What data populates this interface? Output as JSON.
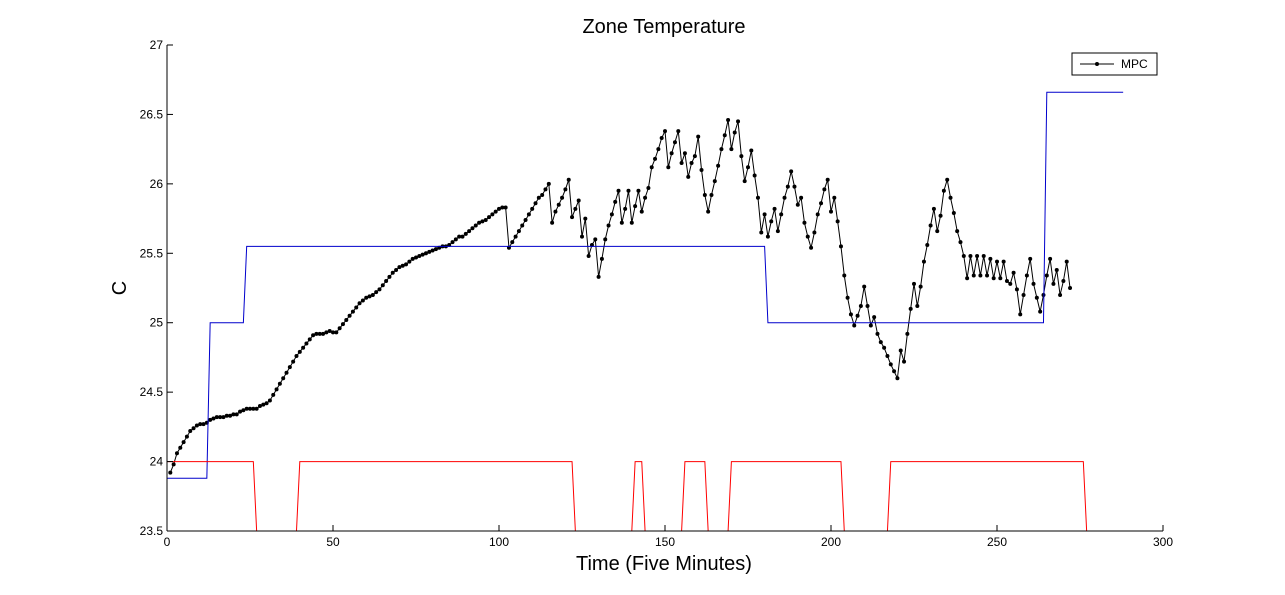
{
  "chart_data": {
    "type": "line",
    "title": "Zone Temperature",
    "xlabel": "Time (Five Minutes)",
    "ylabel": "C",
    "xlim": [
      0,
      300
    ],
    "ylim": [
      23.5,
      27
    ],
    "xticks": [
      0,
      50,
      100,
      150,
      200,
      250,
      300
    ],
    "yticks": [
      23.5,
      24,
      24.5,
      25,
      25.5,
      26,
      26.5,
      27
    ],
    "xtick_labels": [
      "0",
      "50",
      "100",
      "150",
      "200",
      "250",
      "300"
    ],
    "ytick_labels": [
      "23.5",
      "24",
      "24.5",
      "25",
      "25.5",
      "26",
      "26.5",
      "27"
    ],
    "grid": false,
    "legend_position": "top-right",
    "legend": [
      "MPC"
    ],
    "series": [
      {
        "name": "MPC",
        "color": "#000000",
        "marker": "dot",
        "x_start": 1,
        "x_step": 1,
        "y": [
          23.92,
          23.98,
          24.06,
          24.1,
          24.14,
          24.18,
          24.22,
          24.24,
          24.26,
          24.27,
          24.27,
          24.28,
          24.3,
          24.31,
          24.32,
          24.32,
          24.32,
          24.33,
          24.33,
          24.34,
          24.34,
          24.36,
          24.37,
          24.38,
          24.38,
          24.38,
          24.38,
          24.4,
          24.41,
          24.42,
          24.44,
          24.48,
          24.52,
          24.56,
          24.6,
          24.64,
          24.68,
          24.72,
          24.76,
          24.79,
          24.82,
          24.85,
          24.88,
          24.91,
          24.92,
          24.92,
          24.92,
          24.93,
          24.94,
          24.93,
          24.93,
          24.96,
          24.99,
          25.02,
          25.05,
          25.08,
          25.11,
          25.14,
          25.16,
          25.18,
          25.19,
          25.2,
          25.22,
          25.24,
          25.27,
          25.3,
          25.33,
          25.36,
          25.38,
          25.4,
          25.41,
          25.42,
          25.44,
          25.46,
          25.47,
          25.48,
          25.49,
          25.5,
          25.51,
          25.52,
          25.53,
          25.54,
          25.55,
          25.55,
          25.56,
          25.58,
          25.6,
          25.62,
          25.62,
          25.64,
          25.66,
          25.68,
          25.7,
          25.72,
          25.73,
          25.74,
          25.76,
          25.78,
          25.8,
          25.82,
          25.83,
          25.83,
          25.54,
          25.58,
          25.62,
          25.66,
          25.7,
          25.74,
          25.78,
          25.82,
          25.86,
          25.9,
          25.92,
          25.96,
          26.0,
          25.72,
          25.8,
          25.85,
          25.9,
          25.96,
          26.03,
          25.76,
          25.82,
          25.88,
          25.62,
          25.75,
          25.48,
          25.56,
          25.6,
          25.33,
          25.46,
          25.6,
          25.7,
          25.78,
          25.87,
          25.95,
          25.72,
          25.82,
          25.95,
          25.72,
          25.84,
          25.95,
          25.8,
          25.9,
          25.97,
          26.12,
          26.18,
          26.25,
          26.33,
          26.38,
          26.12,
          26.22,
          26.3,
          26.38,
          26.15,
          26.22,
          26.05,
          26.15,
          26.2,
          26.34,
          26.1,
          25.92,
          25.8,
          25.92,
          26.02,
          26.13,
          26.25,
          26.35,
          26.46,
          26.25,
          26.37,
          26.45,
          26.2,
          26.02,
          26.12,
          26.24,
          26.06,
          25.9,
          25.65,
          25.78,
          25.62,
          25.73,
          25.82,
          25.66,
          25.78,
          25.9,
          25.98,
          26.09,
          25.98,
          25.85,
          25.9,
          25.72,
          25.62,
          25.54,
          25.65,
          25.78,
          25.86,
          25.96,
          26.03,
          25.8,
          25.9,
          25.73,
          25.55,
          25.34,
          25.18,
          25.06,
          24.98,
          25.05,
          25.12,
          25.26,
          25.12,
          24.98,
          25.04,
          24.92,
          24.86,
          24.82,
          24.76,
          24.7,
          24.65,
          24.6,
          24.8,
          24.72,
          24.92,
          25.1,
          25.28,
          25.12,
          25.26,
          25.44,
          25.56,
          25.7,
          25.82,
          25.66,
          25.77,
          25.95,
          26.03,
          25.9,
          25.79,
          25.66,
          25.58,
          25.48,
          25.32,
          25.48,
          25.34,
          25.48,
          25.34,
          25.48,
          25.34,
          25.46,
          25.32,
          25.44,
          25.32,
          25.44,
          25.3,
          25.28,
          25.36,
          25.24,
          25.06,
          25.2,
          25.34,
          25.46,
          25.28,
          25.18,
          25.08,
          25.2,
          25.34,
          25.46,
          25.28,
          25.38,
          25.2,
          25.3,
          25.44,
          25.25
        ]
      },
      {
        "name": "",
        "color": "#0000cc",
        "marker": "none",
        "points": [
          [
            0,
            23.88
          ],
          [
            12,
            23.88
          ],
          [
            13,
            25.0
          ],
          [
            23,
            25.0
          ],
          [
            24,
            25.55
          ],
          [
            180,
            25.55
          ],
          [
            181,
            25.0
          ],
          [
            264,
            25.0
          ],
          [
            265,
            26.66
          ],
          [
            288,
            26.66
          ]
        ]
      },
      {
        "name": "",
        "color": "#ff0000",
        "marker": "none",
        "points": [
          [
            0,
            24.0
          ],
          [
            26,
            24.0
          ],
          [
            27,
            23.5
          ],
          [
            39,
            23.5
          ],
          [
            40,
            24.0
          ],
          [
            122,
            24.0
          ],
          [
            123,
            23.5
          ],
          [
            140,
            23.5
          ],
          [
            141,
            24.0
          ],
          [
            143,
            24.0
          ],
          [
            144,
            23.5
          ],
          [
            155,
            23.5
          ],
          [
            156,
            24.0
          ],
          [
            162,
            24.0
          ],
          [
            163,
            23.5
          ],
          [
            169,
            23.5
          ],
          [
            170,
            24.0
          ],
          [
            203,
            24.0
          ],
          [
            204,
            23.5
          ],
          [
            217,
            23.5
          ],
          [
            218,
            24.0
          ],
          [
            276,
            24.0
          ],
          [
            277,
            23.5
          ],
          [
            288,
            23.5
          ]
        ]
      }
    ]
  }
}
